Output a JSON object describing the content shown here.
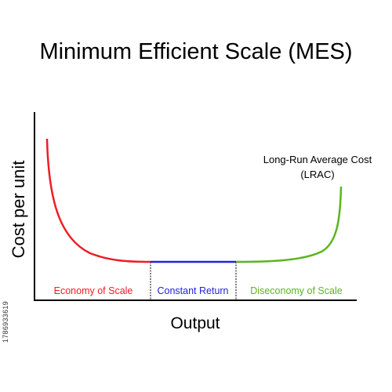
{
  "title": "Minimum Efficient Scale (MES)",
  "axes": {
    "ylabel": "Cost per unit",
    "xlabel": "Output"
  },
  "curve": {
    "label_line1": "Long-Run Average Cost",
    "label_line2": "(LRAC)"
  },
  "regions": {
    "economy": {
      "label": "Economy of Scale",
      "color": "#ee1c25"
    },
    "constant": {
      "label": "Constant Return",
      "color": "#2222dd"
    },
    "diseconomy": {
      "label": "Diseconomy of Scale",
      "color": "#5bb51c"
    }
  },
  "watermark_id": "1786933619"
}
